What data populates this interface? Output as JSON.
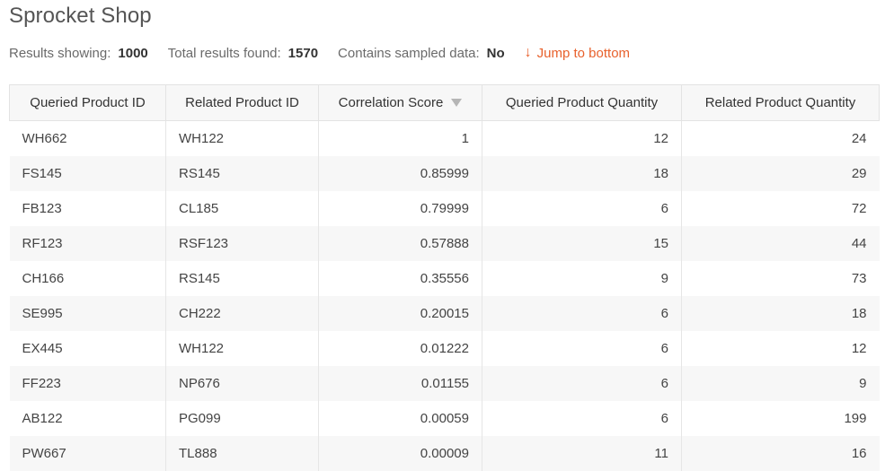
{
  "app": {
    "title": "Sprocket Shop"
  },
  "summary": {
    "results_showing_label": "Results showing:",
    "results_showing_value": "1000",
    "total_found_label": "Total results found:",
    "total_found_value": "1570",
    "sampled_label": "Contains sampled data:",
    "sampled_value": "No",
    "jump_arrow": "↓",
    "jump_label": "Jump to bottom"
  },
  "colors": {
    "accent": "#e8612c",
    "header_bg": "#f7f7f7",
    "stripe": "#f7f7f7"
  },
  "table": {
    "columns": [
      "Queried Product ID",
      "Related Product ID",
      "Correlation Score",
      "Queried Product Quantity",
      "Related Product Quantity"
    ],
    "sort": {
      "column": "Correlation Score",
      "direction": "descending",
      "icon": "sort-down-icon"
    },
    "rows": [
      [
        "WH662",
        "WH122",
        "1",
        "12",
        "24"
      ],
      [
        "FS145",
        "RS145",
        "0.85999",
        "18",
        "29"
      ],
      [
        "FB123",
        "CL185",
        "0.79999",
        "6",
        "72"
      ],
      [
        "RF123",
        "RSF123",
        "0.57888",
        "15",
        "44"
      ],
      [
        "CH166",
        "RS145",
        "0.35556",
        "9",
        "73"
      ],
      [
        "SE995",
        "CH222",
        "0.20015",
        "6",
        "18"
      ],
      [
        "EX445",
        "WH122",
        "0.01222",
        "6",
        "12"
      ],
      [
        "FF223",
        "NP676",
        "0.01155",
        "6",
        "9"
      ],
      [
        "AB122",
        "PG099",
        "0.00059",
        "6",
        "199"
      ],
      [
        "PW667",
        "TL888",
        "0.00009",
        "11",
        "16"
      ]
    ]
  }
}
